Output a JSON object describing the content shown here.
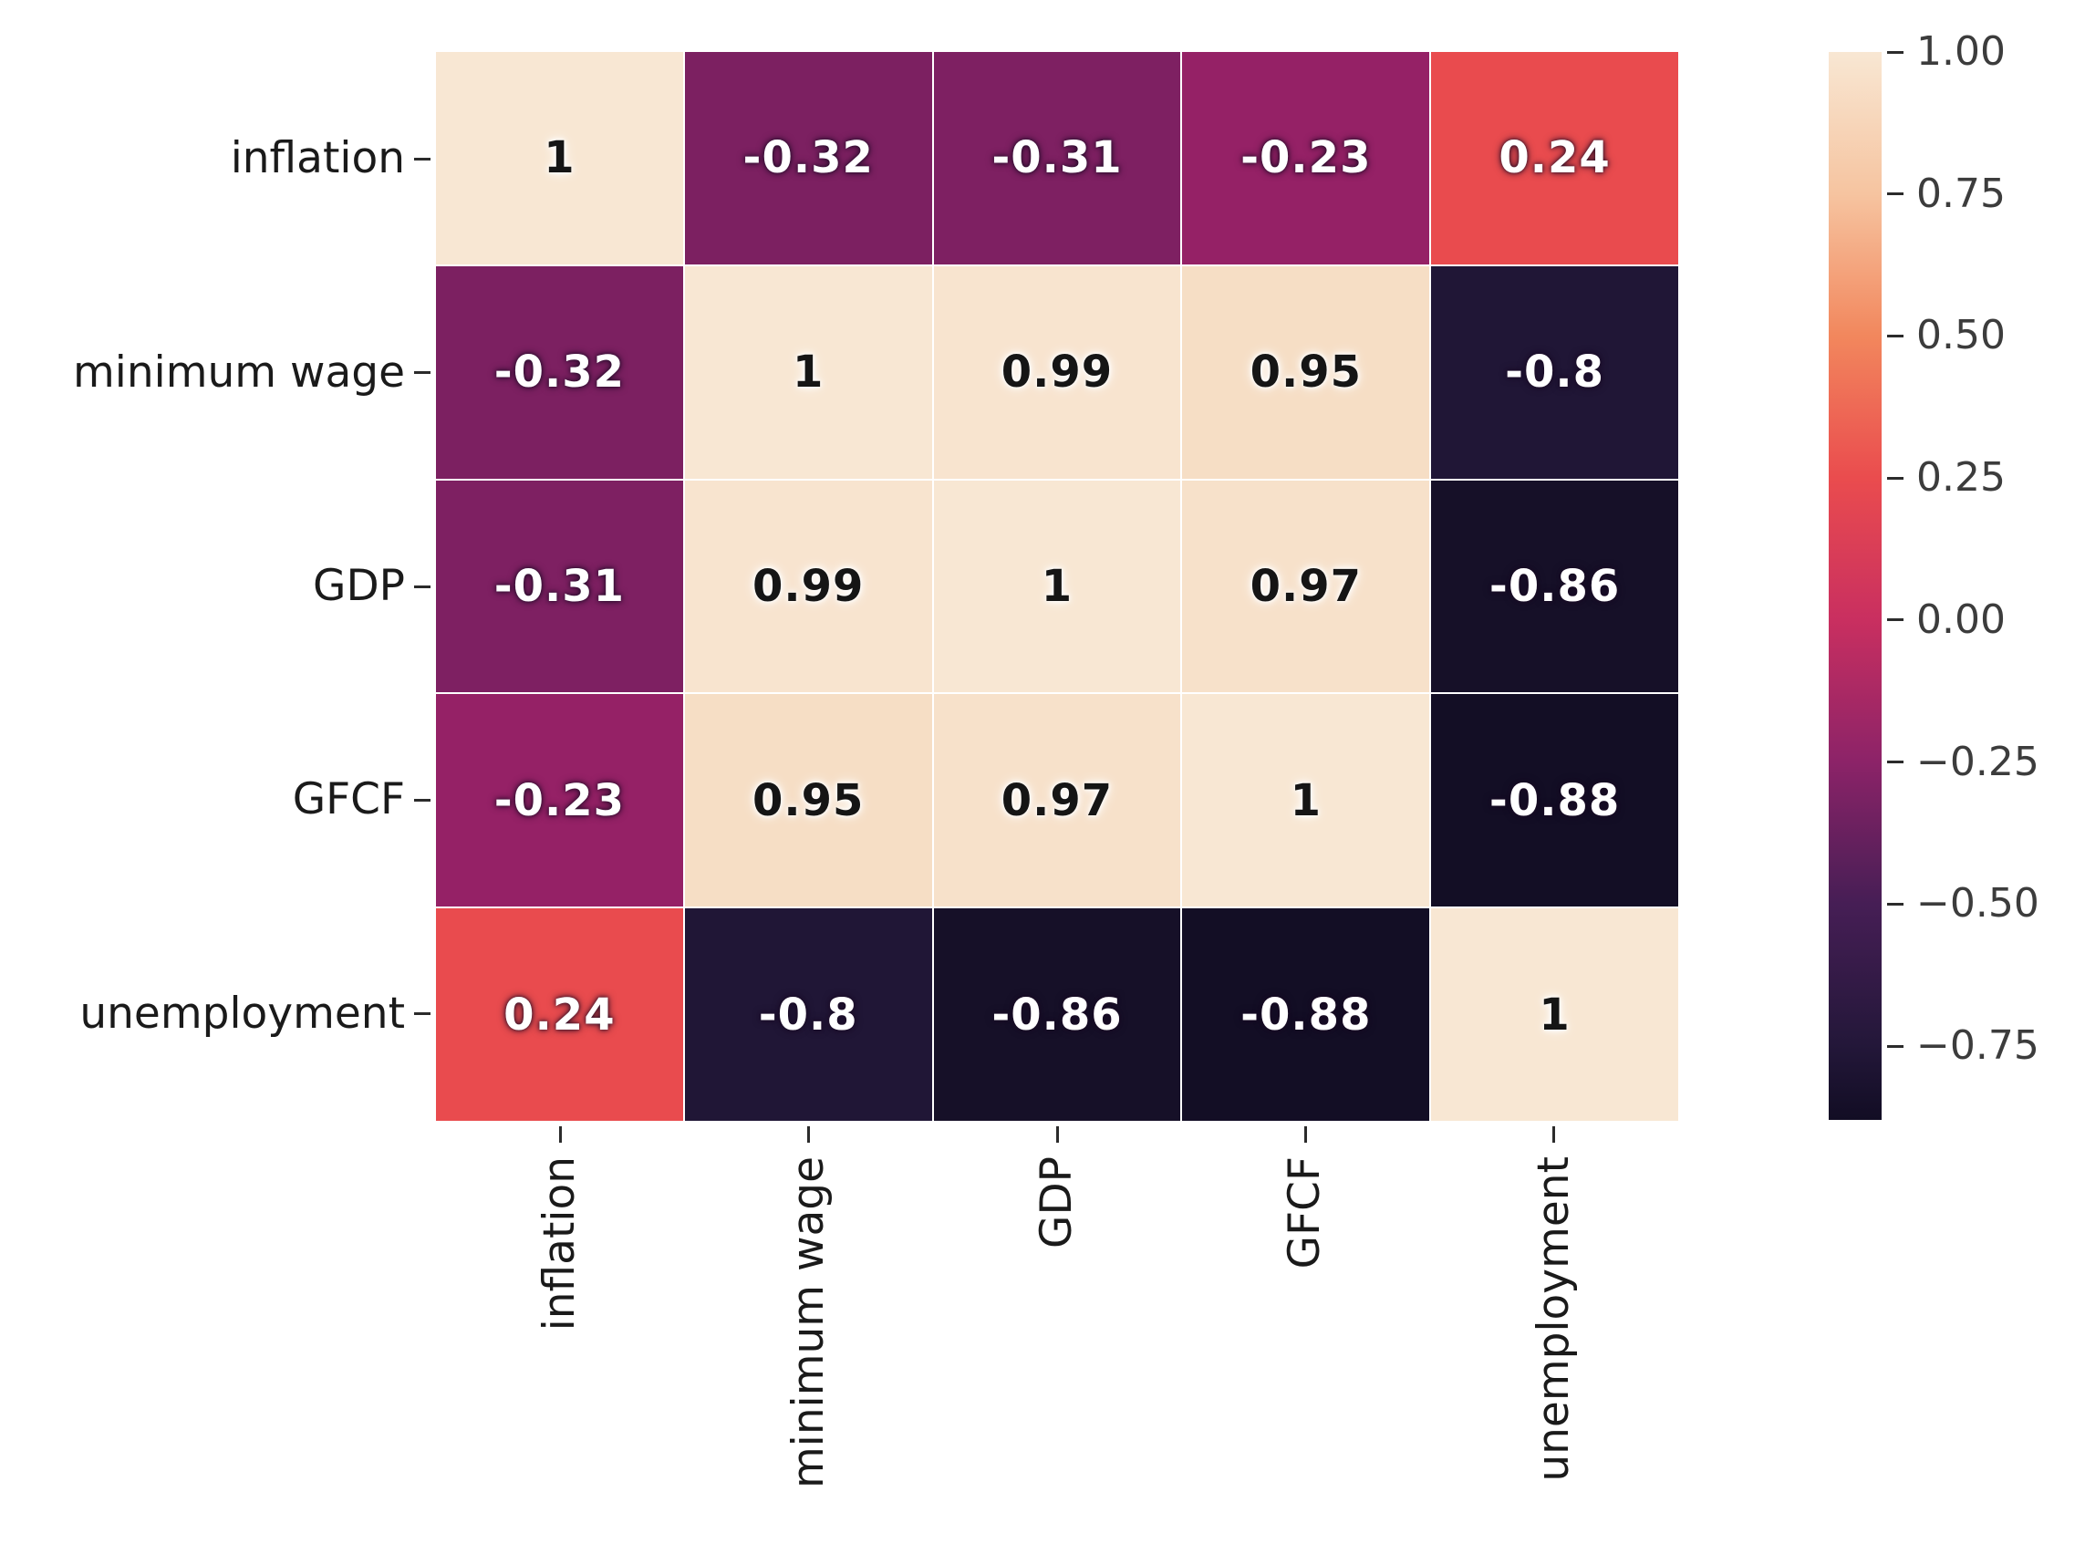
{
  "figure": {
    "background": "#ffffff"
  },
  "chart_data": {
    "type": "heatmap",
    "variables": [
      "inflation",
      "minimum wage",
      "GDP",
      "GFCF",
      "unemployment"
    ],
    "x_tick_labels": [
      "inflation",
      "minimum wage",
      "GDP",
      "GFCF",
      "unemployment"
    ],
    "y_tick_labels": [
      "inflation",
      "minimum wage",
      "GDP",
      "GFCF",
      "unemployment"
    ],
    "matrix": [
      [
        1,
        -0.32,
        -0.31,
        -0.23,
        0.24
      ],
      [
        -0.32,
        1,
        0.99,
        0.95,
        -0.8
      ],
      [
        -0.31,
        0.99,
        1,
        0.97,
        -0.86
      ],
      [
        -0.23,
        0.95,
        0.97,
        1,
        -0.88
      ],
      [
        0.24,
        -0.8,
        -0.86,
        -0.88,
        1
      ]
    ],
    "annotations": [
      [
        "1",
        "-0.32",
        "-0.31",
        "-0.23",
        "0.24"
      ],
      [
        "-0.32",
        "1",
        "0.99",
        "0.95",
        "-0.8"
      ],
      [
        "-0.31",
        "0.99",
        "1",
        "0.97",
        "-0.86"
      ],
      [
        "-0.23",
        "0.95",
        "0.97",
        "1",
        "-0.88"
      ],
      [
        "0.24",
        "-0.8",
        "-0.86",
        "-0.88",
        "1"
      ]
    ],
    "cell_colors": [
      [
        "#f8e7d3",
        "#7c2061",
        "#7e2062",
        "#952166",
        "#e94b4e"
      ],
      [
        "#7c2061",
        "#f8e7d3",
        "#f8e4cf",
        "#f6dec5",
        "#201636"
      ],
      [
        "#7e2062",
        "#f8e4cf",
        "#f8e7d3",
        "#f7e1ca",
        "#161028"
      ],
      [
        "#952166",
        "#f6dec5",
        "#f7e1ca",
        "#f8e7d3",
        "#130e25"
      ],
      [
        "#e94b4e",
        "#201636",
        "#161028",
        "#130e25",
        "#f8e7d3"
      ]
    ],
    "colormap": "rocket",
    "vmin": -0.88,
    "vmax": 1.0,
    "grid": "off",
    "legend_position": "right-colorbar",
    "colorbar": {
      "tick_values": [
        1.0,
        0.75,
        0.5,
        0.25,
        0.0,
        -0.25,
        -0.5,
        -0.75
      ],
      "tick_labels": [
        "1.00",
        "0.75",
        "0.50",
        "0.25",
        "0.00",
        "−0.25",
        "−0.50",
        "−0.75"
      ],
      "gradient_stops": [
        {
          "v": -0.88,
          "color": "#120d24"
        },
        {
          "v": -0.75,
          "color": "#231739"
        },
        {
          "v": -0.5,
          "color": "#461e55"
        },
        {
          "v": -0.25,
          "color": "#8c2368"
        },
        {
          "v": 0.0,
          "color": "#c92f60"
        },
        {
          "v": 0.25,
          "color": "#ea4c4e"
        },
        {
          "v": 0.5,
          "color": "#f2875d"
        },
        {
          "v": 0.75,
          "color": "#f6c4a0"
        },
        {
          "v": 1.0,
          "color": "#f8e7d3"
        }
      ]
    }
  }
}
